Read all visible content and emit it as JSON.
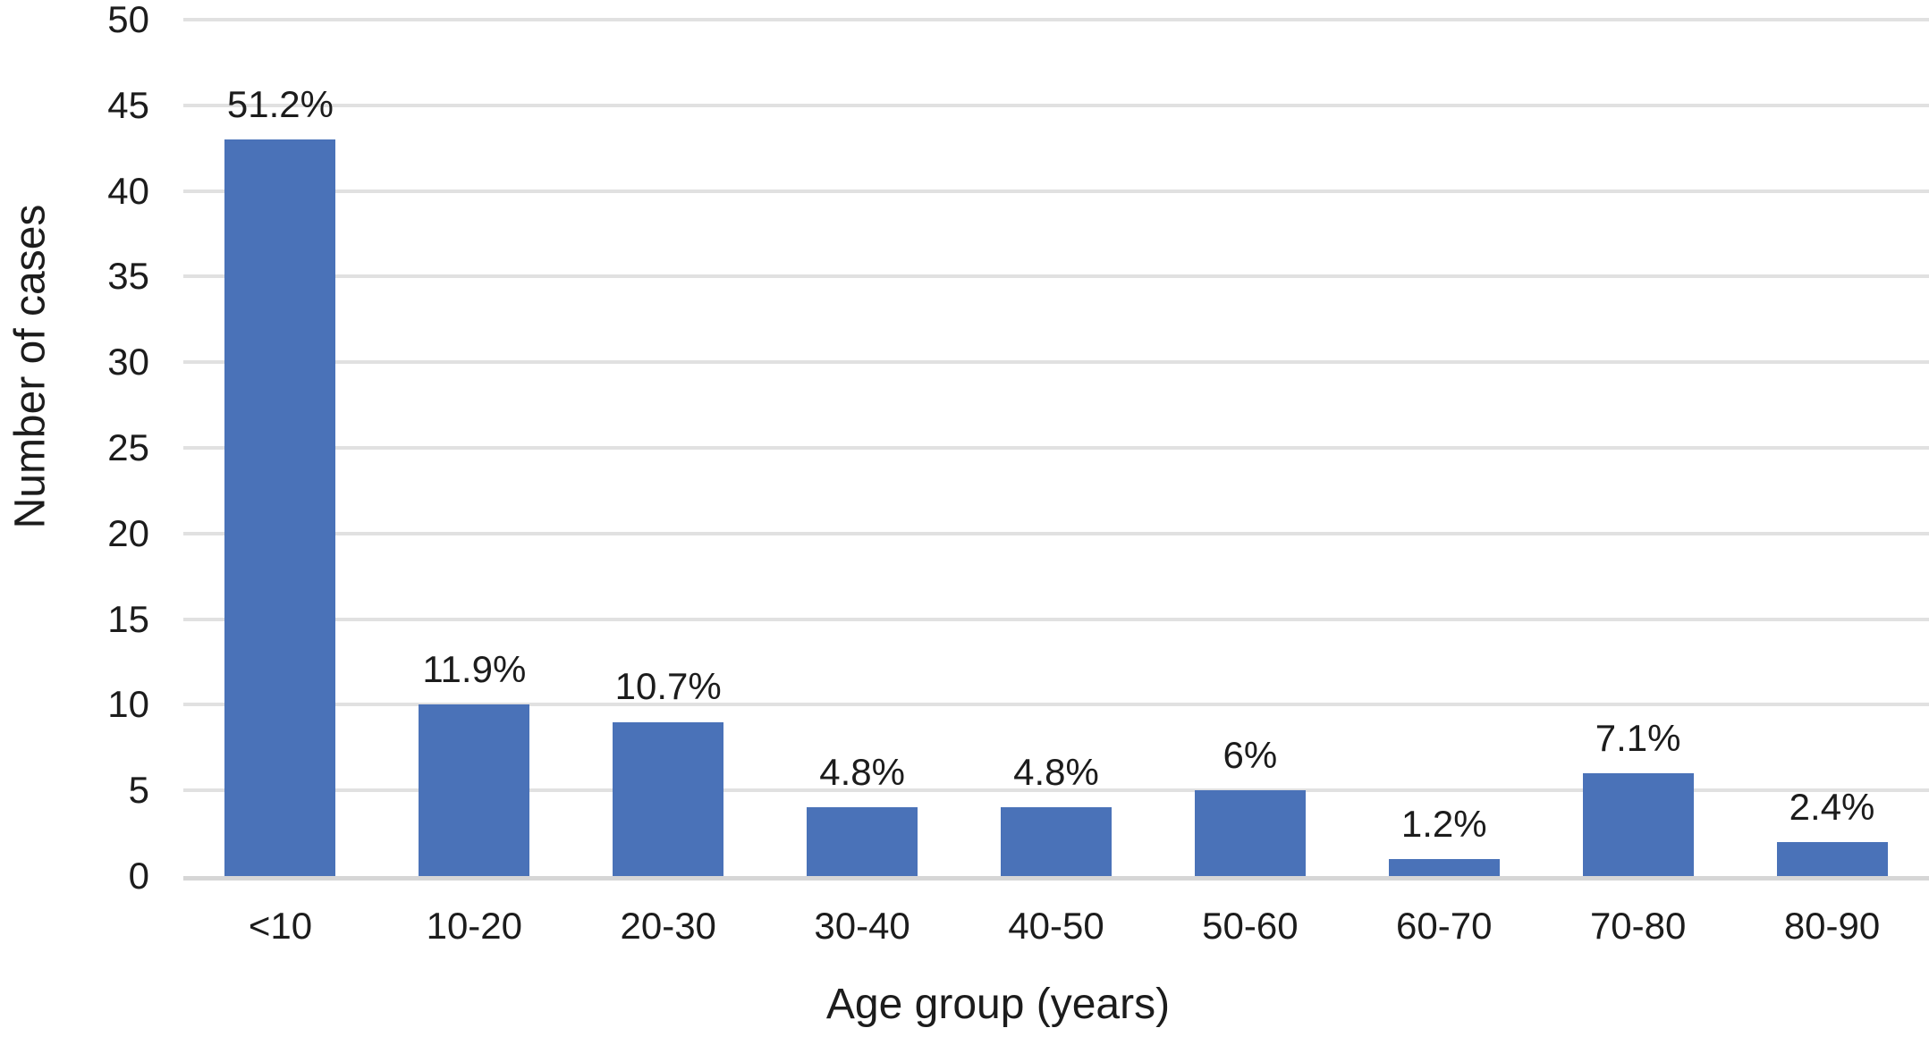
{
  "chart_data": {
    "type": "bar",
    "title": "",
    "categories": [
      "<10",
      "10-20",
      "20-30",
      "30-40",
      "40-50",
      "50-60",
      "60-70",
      "70-80",
      "80-90"
    ],
    "values": [
      43,
      10,
      9,
      4,
      4,
      5,
      1,
      6,
      2
    ],
    "bar_labels": [
      "51.2%",
      "11.9%",
      "10.7%",
      "4.8%",
      "4.8%",
      "6%",
      "1.2%",
      "7.1%",
      "2.4%"
    ],
    "xlabel": "Age group (years)",
    "ylabel": "Number of cases",
    "ylim": [
      0,
      50
    ],
    "ytick_step": 5,
    "yticks": [
      50,
      45,
      40,
      35,
      30,
      25,
      20,
      15,
      10,
      5,
      0
    ],
    "grid": "horizontal",
    "legend": "none",
    "colors": {
      "bar": "#4A72B8",
      "gridline": "#E1E1E1",
      "axis_line": "#D6D6D6",
      "text": "#1C1C1C",
      "background": "#FFFFFF"
    }
  }
}
